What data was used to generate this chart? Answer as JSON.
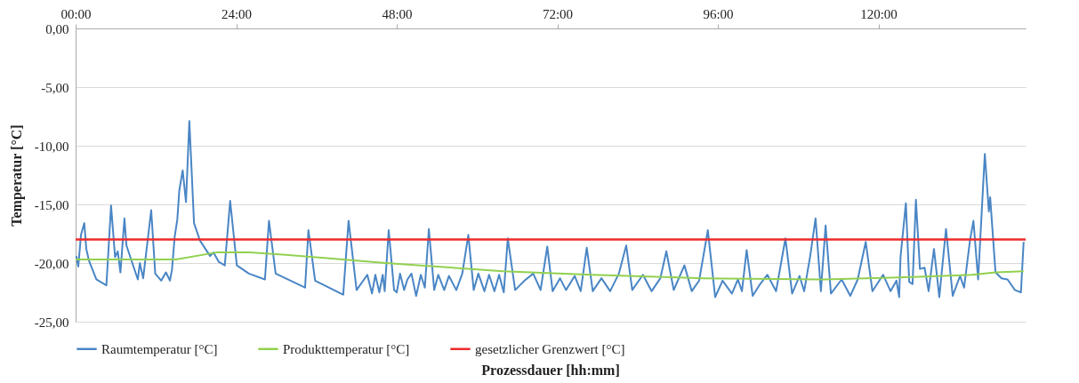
{
  "chart_data": {
    "type": "line",
    "xlabel": "Prozessdauer [hh:mm]",
    "ylabel": "Temperatur [°C]",
    "xlim": [
      0,
      142
    ],
    "xticks": [
      {
        "value": 0,
        "label": "00:00"
      },
      {
        "value": 24,
        "label": "24:00"
      },
      {
        "value": 48,
        "label": "48:00"
      },
      {
        "value": 72,
        "label": "72:00"
      },
      {
        "value": 96,
        "label": "96:00"
      },
      {
        "value": 120,
        "label": "120:00"
      }
    ],
    "ylim": [
      -25,
      0
    ],
    "yticks": [
      {
        "value": -25,
        "label": "-25,00"
      },
      {
        "value": -20,
        "label": "-20,00"
      },
      {
        "value": -15,
        "label": "-15,00"
      },
      {
        "value": -10,
        "label": "-10,00"
      },
      {
        "value": -5,
        "label": "-5,00"
      },
      {
        "value": 0,
        "label": "0,00"
      }
    ],
    "grid": "y",
    "legend": "bottom",
    "series": [
      {
        "name": "Raumtemperatur [°C]",
        "color": "#4a86c5",
        "x": [
          0.1,
          0.4,
          0.8,
          1.3,
          1.6,
          2.0,
          3.1,
          4.6,
          5.3,
          5.9,
          6.3,
          6.7,
          7.3,
          7.6,
          9.3,
          9.6,
          10.1,
          11.3,
          11.9,
          12.8,
          13.5,
          14.1,
          14.4,
          14.8,
          15.2,
          15.5,
          16.0,
          16.5,
          17.0,
          17.7,
          18.6,
          20.1,
          20.6,
          21.4,
          22.3,
          23.1,
          24.1,
          25.9,
          28.3,
          28.9,
          29.9,
          34.3,
          34.8,
          35.8,
          40.0,
          40.8,
          42.0,
          43.6,
          44.3,
          44.8,
          45.4,
          45.9,
          46.2,
          46.8,
          47.6,
          48.0,
          48.5,
          49.1,
          49.6,
          50.2,
          50.9,
          51.6,
          52.2,
          52.8,
          53.6,
          54.2,
          55.1,
          55.8,
          56.9,
          57.8,
          58.7,
          59.5,
          60.2,
          61.1,
          61.8,
          62.6,
          63.3,
          64.0,
          64.6,
          65.7,
          67.1,
          68.4,
          69.5,
          70.5,
          71.3,
          72.4,
          73.3,
          74.6,
          75.5,
          76.4,
          77.3,
          78.6,
          79.9,
          81.2,
          82.3,
          83.2,
          84.8,
          86.1,
          87.4,
          88.3,
          89.4,
          91.0,
          92.1,
          93.2,
          94.5,
          95.6,
          96.7,
          98.1,
          99.0,
          99.6,
          100.3,
          101.2,
          102.3,
          103.4,
          104.7,
          106.1,
          107.1,
          108.2,
          108.9,
          109.8,
          110.6,
          111.4,
          112.1,
          112.9,
          114.5,
          115.8,
          116.9,
          118.1,
          119.1,
          120.7,
          121.8,
          122.7,
          123.1,
          123.3,
          124.1,
          124.6,
          125.1,
          125.6,
          126.2,
          126.9,
          127.5,
          128.3,
          129.1,
          130.1,
          131.1,
          132.2,
          132.8,
          133.7,
          134.2,
          134.9,
          135.9,
          136.5,
          136.7,
          137.5,
          138.4,
          139.3,
          140.4,
          141.3,
          141.7
        ],
        "values": [
          -19.4,
          -20.3,
          -17.6,
          -16.6,
          -18.8,
          -19.8,
          -21.4,
          -21.9,
          -15.1,
          -19.5,
          -19.0,
          -20.8,
          -16.2,
          -18.5,
          -21.4,
          -20.0,
          -21.3,
          -15.5,
          -20.9,
          -21.5,
          -20.8,
          -21.5,
          -20.6,
          -17.8,
          -16.3,
          -13.8,
          -12.1,
          -14.8,
          -7.9,
          -16.6,
          -18.1,
          -19.4,
          -19.1,
          -19.9,
          -20.2,
          -14.7,
          -20.2,
          -20.9,
          -21.4,
          -16.4,
          -20.9,
          -22.1,
          -17.2,
          -21.5,
          -22.7,
          -16.4,
          -22.3,
          -21.0,
          -22.6,
          -21.0,
          -22.5,
          -21.0,
          -22.4,
          -17.2,
          -22.3,
          -22.5,
          -20.9,
          -22.3,
          -21.4,
          -20.9,
          -22.8,
          -21.0,
          -22.1,
          -17.1,
          -22.3,
          -21.0,
          -22.3,
          -21.1,
          -22.3,
          -20.9,
          -17.6,
          -22.3,
          -20.9,
          -22.4,
          -21.0,
          -22.4,
          -21.0,
          -22.5,
          -17.9,
          -22.3,
          -21.5,
          -20.9,
          -22.3,
          -18.6,
          -22.4,
          -21.3,
          -22.3,
          -21.1,
          -22.4,
          -18.7,
          -22.4,
          -21.3,
          -22.4,
          -20.9,
          -18.5,
          -22.3,
          -21.0,
          -22.4,
          -21.3,
          -19.0,
          -22.3,
          -20.2,
          -22.4,
          -21.5,
          -17.2,
          -22.9,
          -21.5,
          -22.6,
          -21.4,
          -22.4,
          -18.9,
          -22.8,
          -21.8,
          -21.0,
          -22.4,
          -17.9,
          -22.6,
          -21.1,
          -22.4,
          -19.4,
          -16.2,
          -22.4,
          -16.8,
          -22.6,
          -21.4,
          -22.8,
          -21.4,
          -18.2,
          -22.4,
          -21.0,
          -22.4,
          -21.5,
          -22.9,
          -19.5,
          -14.9,
          -21.6,
          -21.8,
          -14.6,
          -20.5,
          -20.4,
          -22.4,
          -18.8,
          -22.9,
          -17.1,
          -22.8,
          -21.1,
          -22.1,
          -18.0,
          -16.4,
          -21.4,
          -10.7,
          -15.6,
          -14.4,
          -20.8,
          -21.3,
          -21.4,
          -22.3,
          -22.5,
          -18.2
        ]
      },
      {
        "name": "Produkttemperatur [°C]",
        "color": "#92d050",
        "x": [
          0,
          15,
          21,
          26,
          31.4,
          40,
          46.3,
          63.9,
          77.2,
          94,
          111.8,
          125,
          134,
          137.5,
          141.7
        ],
        "values": [
          -19.7,
          -19.7,
          -19.1,
          -19.1,
          -19.3,
          -19.7,
          -20.0,
          -20.7,
          -21.0,
          -21.3,
          -21.4,
          -21.2,
          -21.0,
          -20.8,
          -20.7
        ]
      }
    ],
    "ref_lines": [
      {
        "axis": "y",
        "value": -18,
        "label": "gesetzlicher Grenzwert [°C]",
        "color": "#ee2a2a"
      }
    ]
  }
}
